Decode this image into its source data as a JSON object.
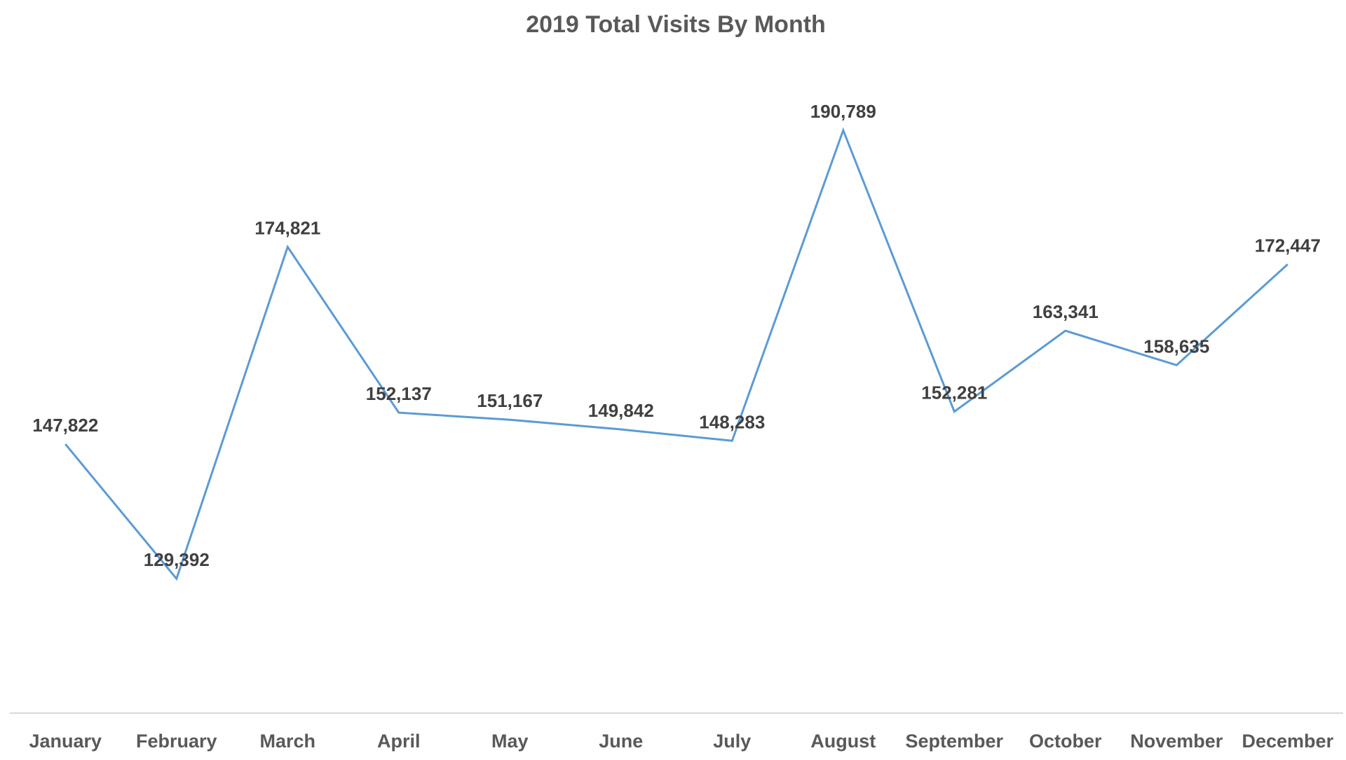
{
  "chart_data": {
    "type": "line",
    "title": "2019 Total Visits By Month",
    "xlabel": "",
    "ylabel": "",
    "categories": [
      "January",
      "February",
      "March",
      "April",
      "May",
      "June",
      "July",
      "August",
      "September",
      "October",
      "November",
      "December"
    ],
    "series": [
      {
        "values": [
          147822,
          129392,
          174821,
          152137,
          151167,
          149842,
          148283,
          190789,
          152281,
          163341,
          158635,
          172447
        ],
        "color": "#5b9bd5"
      }
    ],
    "data_labels": [
      "147,822",
      "129,392",
      "174,821",
      "152,137",
      "151,167",
      "149,842",
      "148,283",
      "190,789",
      "152,281",
      "163,341",
      "158,635",
      "172,447"
    ],
    "ylim": [
      111000,
      200000
    ],
    "grid": false,
    "legend": "none",
    "y_axis_visible": false
  },
  "colors": {
    "title": "#595959",
    "labels": "#404040",
    "axis_line": "#d9d9d9",
    "line": "#5b9bd5"
  }
}
